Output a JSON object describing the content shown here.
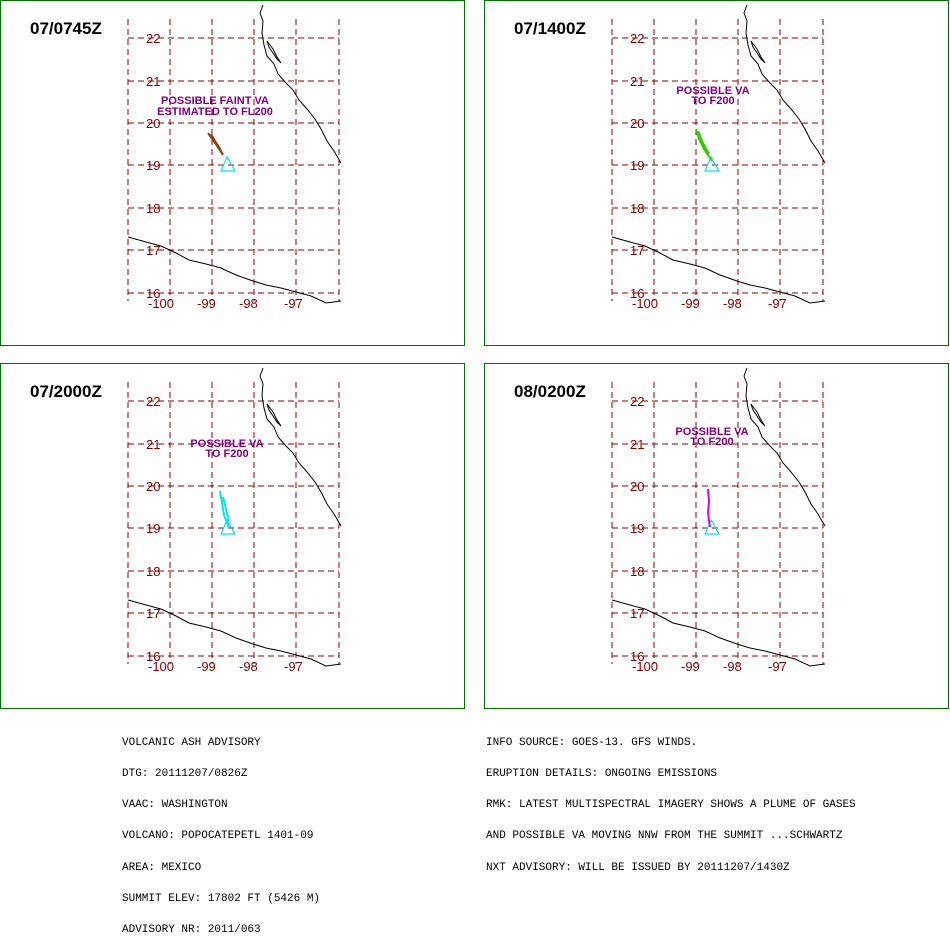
{
  "panels": [
    {
      "time": "07/0745Z",
      "plume_color": "#8b4513",
      "note_lines": [
        "POSSIBLE FAINT VA",
        "ESTIMATED  TO FL200"
      ]
    },
    {
      "time": "07/1400Z",
      "plume_color": "#33cc00",
      "note_lines": [
        "POSSIBLE  VA",
        "TO F200"
      ]
    },
    {
      "time": "07/2000Z",
      "plume_color": "#00e5e5",
      "note_lines": [
        "POSSIBLE  VA",
        "TO F200"
      ]
    },
    {
      "time": "08/0200Z",
      "plume_color": "#e000e0",
      "note_lines": [
        "POSSIBLE  VA",
        "TO F200"
      ]
    }
  ],
  "map": {
    "lat_labels": [
      "22",
      "21",
      "20",
      "19",
      "18",
      "17",
      "16"
    ],
    "lon_labels": [
      "-100",
      "-99",
      "-98",
      "-97"
    ],
    "grid_color": "#8b0000",
    "label_color": "#800000",
    "note_color": "#800080",
    "volcano_color": "#00e5e5",
    "coast_color": "#000000"
  },
  "footer_left": [
    "VOLCANIC ASH ADVISORY",
    "DTG: 20111207/0826Z",
    "VAAC: WASHINGTON",
    "VOLCANO: POPOCATEPETL 1401-09",
    "AREA: MEXICO",
    "SUMMIT ELEV: 17802 FT (5426 M)",
    "ADVISORY NR: 2011/063"
  ],
  "footer_right": [
    "INFO SOURCE: GOES-13. GFS WINDS.",
    "ERUPTION DETAILS: ONGOING EMISSIONS",
    "RMK: LATEST MULTISPECTRAL IMAGERY SHOWS A PLUME OF GASES",
    "AND POSSIBLE VA MOVING NNW FROM THE SUMMIT ...SCHWARTZ",
    "NXT ADVISORY: WILL BE ISSUED BY 20111207/1430Z"
  ]
}
